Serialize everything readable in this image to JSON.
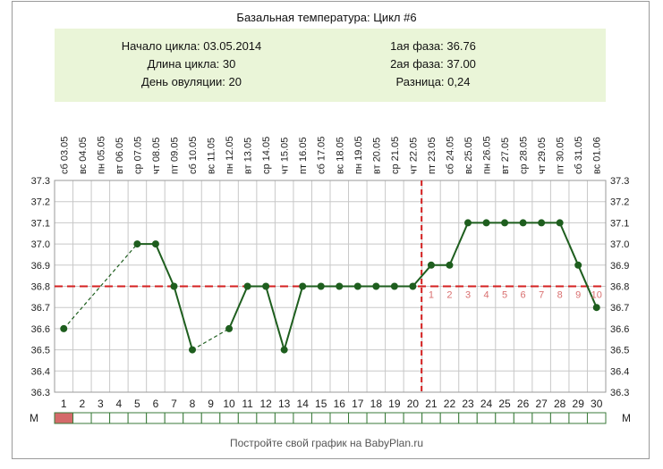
{
  "chart_data": {
    "type": "line",
    "title": "Базальная температура: Цикл #6",
    "summary": {
      "cycle_start": "Начало цикла: 03.05.2014",
      "cycle_length": "Длина цикла: 30",
      "ovulation_day": "День овуляции: 20",
      "phase1": "1ая фаза: 36.76",
      "phase2": "2ая фаза: 37.00",
      "difference": "Разница: 0,24"
    },
    "dates": [
      "сб 03.05",
      "вс 04.05",
      "пн 05.05",
      "вт 06.05",
      "ср 07.05",
      "чт 08.05",
      "пт 09.05",
      "сб 10.05",
      "вс 11.05",
      "пн 12.05",
      "вт 13.05",
      "ср 14.05",
      "чт 15.05",
      "пт 16.05",
      "сб 17.05",
      "вс 18.05",
      "пн 19.05",
      "вт 20.05",
      "ср 21.05",
      "чт 22.05",
      "пт 23.05",
      "сб 24.05",
      "вс 25.05",
      "пн 26.05",
      "вт 27.05",
      "ср 28.05",
      "чт 29.05",
      "пт 30.05",
      "сб 31.05",
      "вс 01.06"
    ],
    "days": [
      "1",
      "2",
      "3",
      "4",
      "5",
      "6",
      "7",
      "8",
      "9",
      "10",
      "11",
      "12",
      "13",
      "14",
      "15",
      "16",
      "17",
      "18",
      "19",
      "20",
      "21",
      "22",
      "23",
      "24",
      "25",
      "26",
      "27",
      "28",
      "29",
      "30"
    ],
    "series": [
      {
        "values": [
          36.6,
          null,
          null,
          null,
          37.0,
          37.0,
          36.8,
          36.5,
          null,
          36.6,
          36.8,
          36.8,
          36.5,
          36.8,
          36.8,
          36.8,
          36.8,
          36.8,
          36.8,
          36.8,
          36.9,
          36.9,
          37.1,
          37.1,
          37.1,
          37.1,
          37.1,
          37.1,
          36.9,
          36.7
        ]
      }
    ],
    "y_ticks": [
      "36.3",
      "36.4",
      "36.5",
      "36.6",
      "36.7",
      "36.8",
      "36.9",
      "37.0",
      "37.1",
      "37.2",
      "37.3"
    ],
    "ylim": [
      36.3,
      37.3
    ],
    "coverline": 36.8,
    "ovulation_day": 20,
    "phase2_day_labels": [
      "1",
      "2",
      "3",
      "4",
      "5",
      "6",
      "7",
      "8",
      "9",
      "10"
    ],
    "menstruation_label": "М",
    "menstruation_days": [
      1
    ],
    "footer": "Постройте свой график на BabyPlan.ru",
    "colors": {
      "line": "#1e5e1e",
      "point": "#1e5e1e",
      "coverline": "#d42020",
      "ovulation": "#d42020",
      "phase_label": "#d97070",
      "summary_bg": "#eaf5d8",
      "grid": "#c8c8c8",
      "menstruation_fill": "#d46a6a",
      "menstruation_border": "#3a7a3a"
    }
  }
}
